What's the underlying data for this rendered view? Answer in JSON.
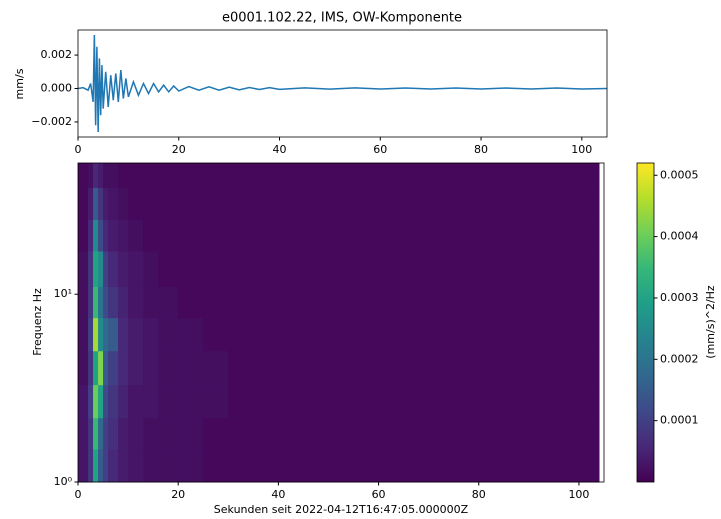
{
  "chart_data": [
    {
      "type": "line",
      "title": "e0001.102.22, IMS, OW-Komponente",
      "ylabel": "mm/s",
      "color": "#1f77b4",
      "x": [
        0,
        1,
        2,
        2.5,
        3,
        3.25,
        3.5,
        3.75,
        4,
        4.25,
        4.5,
        4.75,
        5,
        5.5,
        6,
        6.5,
        7,
        7.5,
        8,
        8.5,
        9,
        9.5,
        10,
        11,
        12,
        13,
        14,
        15,
        16,
        17,
        18,
        19,
        20,
        22,
        24,
        26,
        28,
        30,
        32,
        34,
        36,
        38,
        40,
        45,
        50,
        55,
        60,
        65,
        70,
        75,
        80,
        85,
        90,
        95,
        100,
        105
      ],
      "values": [
        0,
        5e-05,
        -0.0001,
        0.0003,
        -0.0008,
        0.0032,
        -0.0022,
        0.0025,
        -0.0026,
        0.0018,
        -0.0016,
        0.0014,
        -0.0012,
        0.001,
        -0.0011,
        0.0008,
        -0.0007,
        0.0009,
        -0.0008,
        0.0011,
        -0.0006,
        0.0006,
        -0.0005,
        0.0004,
        -0.0004,
        0.0003,
        -0.0003,
        0.0003,
        -0.0002,
        0.0002,
        -0.0002,
        0.00015,
        -0.00015,
        0.00012,
        -0.0001,
        0.0001,
        -0.0001,
        8e-05,
        -8e-05,
        6e-05,
        -6e-05,
        5e-05,
        -5e-05,
        4e-05,
        -4e-05,
        4e-05,
        -3e-05,
        3e-05,
        -3e-05,
        3e-05,
        -3e-05,
        3e-05,
        -3e-05,
        3e-05,
        -3e-05,
        0
      ],
      "xlim": [
        0,
        105
      ],
      "xticks": [
        0,
        20,
        40,
        60,
        80,
        100
      ],
      "ylim": [
        -0.0029,
        0.0035
      ],
      "yticks": [
        {
          "value": -0.002,
          "label": "−0.002"
        },
        {
          "value": 0,
          "label": "0.000"
        },
        0.002
      ]
    },
    {
      "type": "heatmap",
      "xlabel": "Sekunden seit 2022-04-12T16:47:05.000000Z",
      "ylabel": "Frequenz Hz",
      "colorbar_label": "(mm/s)^2/Hz",
      "colormap": "viridis",
      "log_y": true,
      "x": [
        0,
        2,
        3,
        4,
        5,
        6,
        8,
        10,
        13,
        16,
        20,
        25,
        30,
        40,
        50,
        60,
        70,
        80,
        90,
        100,
        104
      ],
      "y": [
        1,
        1.5,
        2.2,
        3.3,
        5,
        7.5,
        11,
        17,
        25,
        37,
        50
      ],
      "z": [
        [
          3e-05,
          8e-05,
          0.0003,
          0.00015,
          0.0001,
          6e-05,
          4e-05,
          3e-05,
          2e-05,
          2e-05,
          2e-05,
          1e-05,
          1e-05,
          1e-05,
          1e-05,
          1e-05,
          1e-05,
          1e-05,
          1e-05,
          1e-05
        ],
        [
          3e-05,
          8e-05,
          0.00035,
          0.00018,
          0.0001,
          7e-05,
          4e-05,
          3e-05,
          2e-05,
          2e-05,
          2e-05,
          1e-05,
          1e-05,
          1e-05,
          1e-05,
          1e-05,
          1e-05,
          1e-05,
          1e-05,
          1e-05
        ],
        [
          3e-05,
          0.0001,
          0.0004,
          0.0003,
          0.00012,
          8e-05,
          5e-05,
          3e-05,
          3e-05,
          2e-05,
          2e-05,
          2e-05,
          1e-05,
          1e-05,
          1e-05,
          1e-05,
          1e-05,
          1e-05,
          1e-05,
          1e-05
        ],
        [
          2e-05,
          8e-05,
          0.0003,
          0.00042,
          0.00015,
          0.0001,
          6e-05,
          4e-05,
          3e-05,
          2e-05,
          2e-05,
          2e-05,
          1e-05,
          1e-05,
          1e-05,
          1e-05,
          1e-05,
          1e-05,
          1e-05,
          1e-05
        ],
        [
          2e-05,
          0.0001,
          0.00045,
          0.00025,
          0.00018,
          0.00015,
          6e-05,
          4e-05,
          3e-05,
          2e-05,
          2e-05,
          1e-05,
          1e-05,
          1e-05,
          1e-05,
          1e-05,
          1e-05,
          1e-05,
          1e-05,
          1e-05
        ],
        [
          2e-05,
          8e-05,
          0.00035,
          0.0002,
          0.00012,
          8e-05,
          5e-05,
          3e-05,
          2e-05,
          2e-05,
          1e-05,
          1e-05,
          1e-05,
          1e-05,
          1e-05,
          1e-05,
          1e-05,
          1e-05,
          1e-05,
          1e-05
        ],
        [
          2e-05,
          8e-05,
          0.0003,
          0.00025,
          0.0001,
          6e-05,
          4e-05,
          3e-05,
          2e-05,
          1e-05,
          1e-05,
          1e-05,
          1e-05,
          1e-05,
          1e-05,
          1e-05,
          1e-05,
          1e-05,
          1e-05,
          1e-05
        ],
        [
          1e-05,
          6e-05,
          0.00025,
          0.00012,
          6e-05,
          4e-05,
          3e-05,
          2e-05,
          1e-05,
          1e-05,
          1e-05,
          1e-05,
          1e-05,
          1e-05,
          1e-05,
          1e-05,
          1e-05,
          1e-05,
          1e-05,
          1e-05
        ],
        [
          1e-05,
          4e-05,
          0.00015,
          8e-05,
          4e-05,
          3e-05,
          2e-05,
          1e-05,
          1e-05,
          1e-05,
          1e-05,
          1e-05,
          1e-05,
          1e-05,
          1e-05,
          1e-05,
          1e-05,
          1e-05,
          1e-05,
          1e-05
        ],
        [
          1e-05,
          2e-05,
          6e-05,
          4e-05,
          2e-05,
          2e-05,
          1e-05,
          1e-05,
          1e-05,
          1e-05,
          1e-05,
          1e-05,
          1e-05,
          1e-05,
          1e-05,
          1e-05,
          1e-05,
          1e-05,
          1e-05,
          1e-05
        ]
      ],
      "xlim": [
        0,
        105
      ],
      "xticks": [
        0,
        20,
        40,
        60,
        80,
        100
      ],
      "ylim": [
        1,
        50
      ],
      "yticks": [
        {
          "value": 1,
          "label": "10⁰"
        },
        {
          "value": 10,
          "label": "10¹"
        }
      ],
      "clim": [
        0,
        0.00052
      ],
      "cticks": [
        0.0001,
        0.0002,
        0.0003,
        0.0004,
        0.0005
      ]
    }
  ]
}
